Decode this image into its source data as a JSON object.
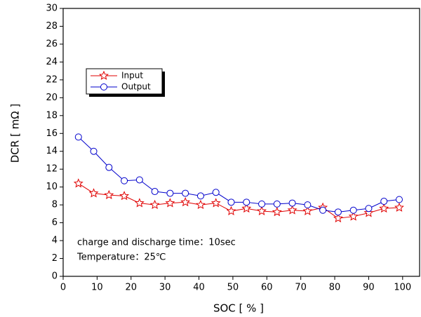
{
  "chart_data": {
    "type": "line",
    "x_label": "SOC [ % ]",
    "y_label": "DCR [ mΩ ]",
    "x": [
      4.5,
      9,
      13.5,
      18,
      22.5,
      27,
      31.5,
      36,
      40.5,
      45,
      49.5,
      54,
      58.5,
      63,
      67.5,
      72,
      76.5,
      81,
      85.5,
      90,
      94.5,
      99
    ],
    "series": [
      {
        "name": "Input",
        "color": "#e00000",
        "marker": "star",
        "values": [
          10.4,
          9.3,
          9.1,
          9.0,
          8.2,
          8.0,
          8.2,
          8.3,
          8.0,
          8.2,
          7.3,
          7.6,
          7.3,
          7.2,
          7.4,
          7.3,
          7.7,
          6.5,
          6.7,
          7.1,
          7.6,
          7.7
        ]
      },
      {
        "name": "Output",
        "color": "#0000cc",
        "marker": "circle",
        "values": [
          15.6,
          14.0,
          12.2,
          10.7,
          10.8,
          9.5,
          9.3,
          9.3,
          9.0,
          9.4,
          8.3,
          8.3,
          8.1,
          8.1,
          8.2,
          8.0,
          7.4,
          7.2,
          7.4,
          7.6,
          8.4,
          8.6
        ]
      }
    ],
    "xlim": [
      0,
      105
    ],
    "xticks": [
      0,
      10,
      20,
      30,
      40,
      50,
      60,
      70,
      80,
      90,
      100
    ],
    "ylim": [
      0,
      30
    ],
    "yticks": [
      0,
      2,
      4,
      6,
      8,
      10,
      12,
      14,
      16,
      18,
      20,
      22,
      24,
      26,
      28,
      30
    ],
    "legend": "upper left",
    "annotations": [
      "charge and discharge time：10sec",
      "Temperature：25℃"
    ]
  }
}
